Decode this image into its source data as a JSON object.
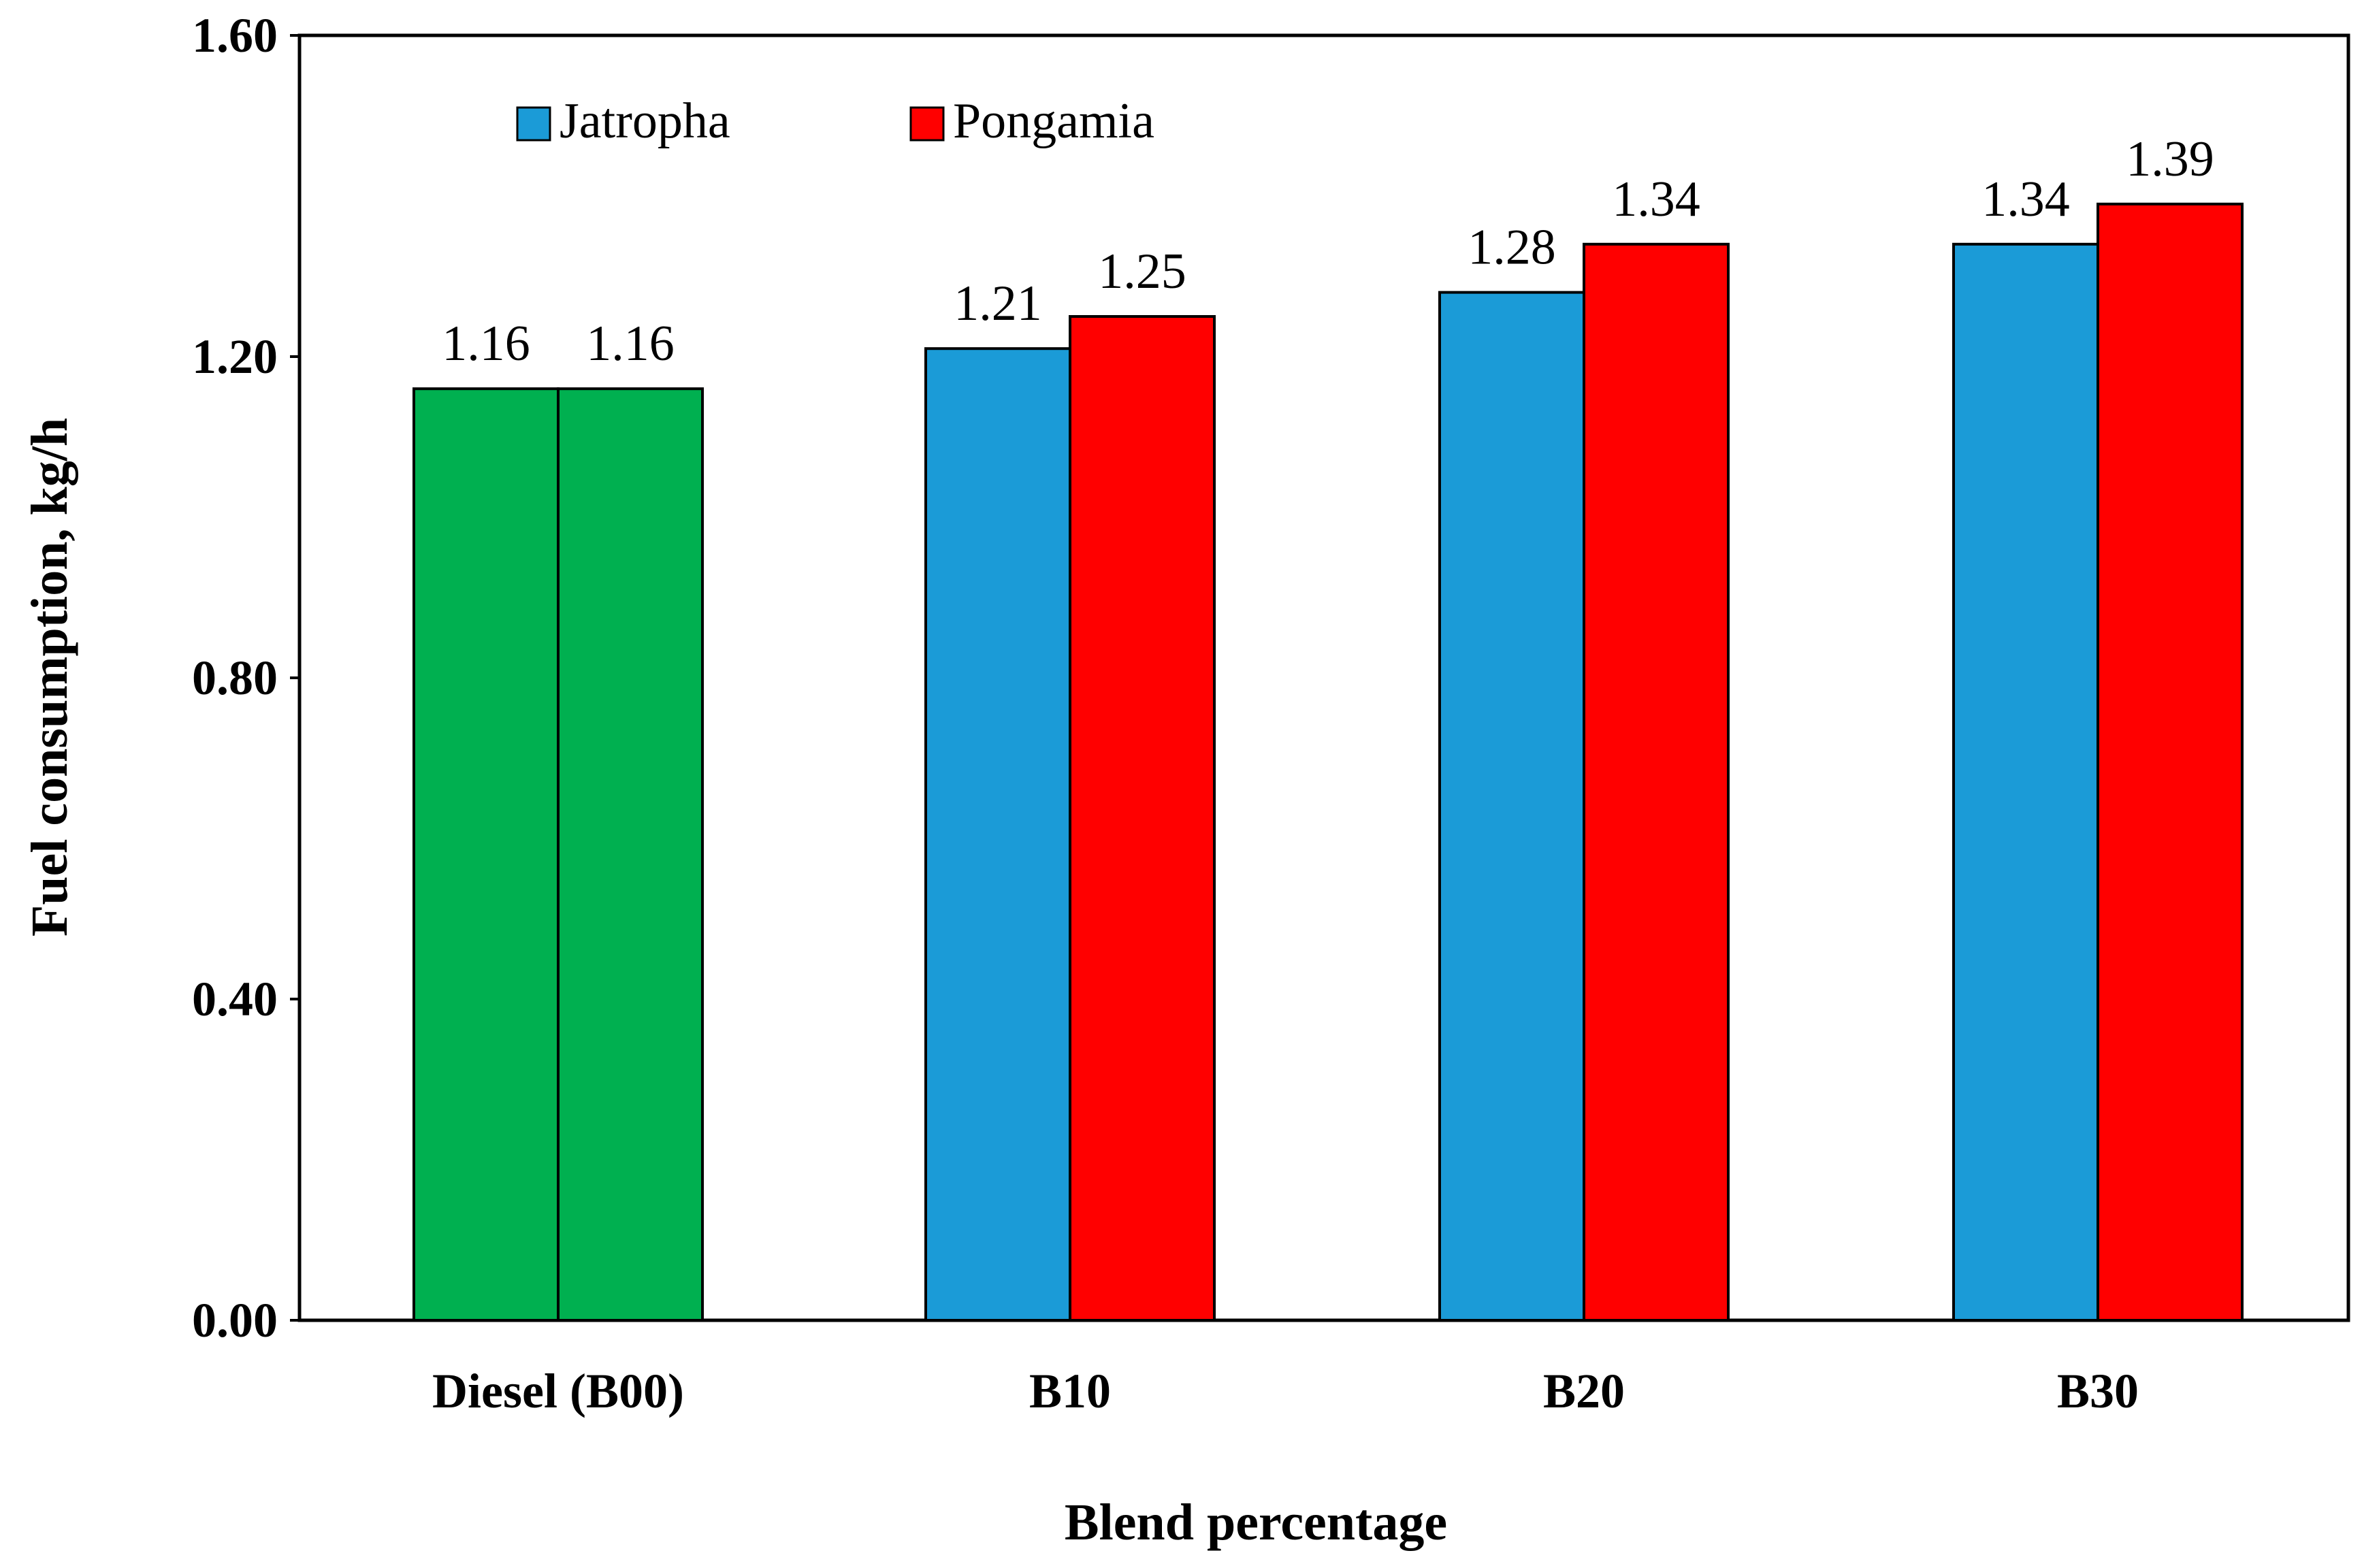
{
  "chart_data": {
    "type": "bar",
    "title": "",
    "xlabel": "Blend percentage",
    "ylabel": "Fuel consumption, kg/h",
    "categories": [
      "Diesel (B00)",
      "B10",
      "B20",
      "B30"
    ],
    "series": [
      {
        "name": "Jatropha",
        "color": "#1b9bd7",
        "values": [
          1.16,
          1.21,
          1.28,
          1.34
        ]
      },
      {
        "name": "Pongamia",
        "color": "#ff0000",
        "values": [
          1.16,
          1.25,
          1.34,
          1.39
        ]
      }
    ],
    "baseline_color": "#00b050",
    "baseline_category": "Diesel (B00)",
    "ylim": [
      0,
      1.6
    ],
    "yticks": [
      "0.00",
      "0.40",
      "0.80",
      "1.20",
      "1.60"
    ],
    "data_labels": [
      [
        "1.16",
        "1.21",
        "1.28",
        "1.34"
      ],
      [
        "1.16",
        "1.25",
        "1.34",
        "1.39"
      ]
    ],
    "legend_position": "top-left",
    "grid": false
  }
}
